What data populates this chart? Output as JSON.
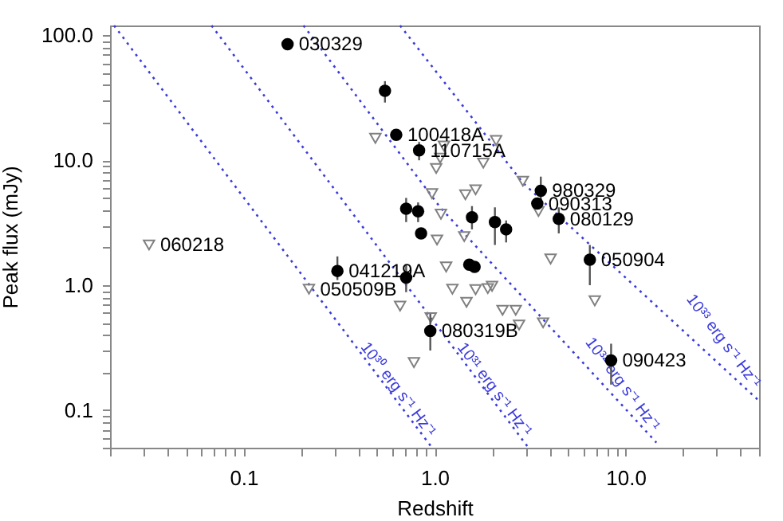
{
  "chart_data": {
    "type": "scatter",
    "xlabel": "Redshift",
    "ylabel": "Peak flux (mJy)",
    "xlim": [
      0.02,
      50
    ],
    "ylim": [
      0.05,
      120
    ],
    "log": "xy",
    "grid": false,
    "xticks": [
      {
        "value": 0.02,
        "label": null
      },
      {
        "value": 0.03,
        "label": null
      },
      {
        "value": 0.04,
        "label": null
      },
      {
        "value": 0.05,
        "label": null
      },
      {
        "value": 0.06,
        "label": null
      },
      {
        "value": 0.07,
        "label": null
      },
      {
        "value": 0.08,
        "label": null
      },
      {
        "value": 0.09,
        "label": null
      },
      {
        "value": 0.1,
        "label": "0.1"
      },
      {
        "value": 0.2,
        "label": null
      },
      {
        "value": 0.3,
        "label": null
      },
      {
        "value": 0.4,
        "label": null
      },
      {
        "value": 0.5,
        "label": null
      },
      {
        "value": 0.6,
        "label": null
      },
      {
        "value": 0.7,
        "label": null
      },
      {
        "value": 0.8,
        "label": null
      },
      {
        "value": 0.9,
        "label": null
      },
      {
        "value": 1,
        "label": "1.0"
      },
      {
        "value": 2,
        "label": null
      },
      {
        "value": 3,
        "label": null
      },
      {
        "value": 4,
        "label": null
      },
      {
        "value": 5,
        "label": null
      },
      {
        "value": 6,
        "label": null
      },
      {
        "value": 7,
        "label": null
      },
      {
        "value": 8,
        "label": null
      },
      {
        "value": 9,
        "label": null
      },
      {
        "value": 10,
        "label": "10.0"
      },
      {
        "value": 20,
        "label": null
      },
      {
        "value": 30,
        "label": null
      },
      {
        "value": 40,
        "label": null
      },
      {
        "value": 50,
        "label": null
      }
    ],
    "yticks": [
      {
        "value": 0.05,
        "label": null
      },
      {
        "value": 0.06,
        "label": null
      },
      {
        "value": 0.07,
        "label": null
      },
      {
        "value": 0.08,
        "label": null
      },
      {
        "value": 0.09,
        "label": null
      },
      {
        "value": 0.1,
        "label": "0.1"
      },
      {
        "value": 0.2,
        "label": null
      },
      {
        "value": 0.3,
        "label": null
      },
      {
        "value": 0.4,
        "label": null
      },
      {
        "value": 0.5,
        "label": null
      },
      {
        "value": 0.6,
        "label": null
      },
      {
        "value": 0.7,
        "label": null
      },
      {
        "value": 0.8,
        "label": null
      },
      {
        "value": 0.9,
        "label": null
      },
      {
        "value": 1,
        "label": "1.0"
      },
      {
        "value": 2,
        "label": null
      },
      {
        "value": 3,
        "label": null
      },
      {
        "value": 4,
        "label": null
      },
      {
        "value": 5,
        "label": null
      },
      {
        "value": 6,
        "label": null
      },
      {
        "value": 7,
        "label": null
      },
      {
        "value": 8,
        "label": null
      },
      {
        "value": 9,
        "label": null
      },
      {
        "value": 10,
        "label": "10.0"
      },
      {
        "value": 20,
        "label": null
      },
      {
        "value": 30,
        "label": null
      },
      {
        "value": 40,
        "label": null
      },
      {
        "value": 50,
        "label": null
      },
      {
        "value": 60,
        "label": null
      },
      {
        "value": 70,
        "label": null
      },
      {
        "value": 80,
        "label": null
      },
      {
        "value": 90,
        "label": null
      },
      {
        "value": 100,
        "label": "100.0"
      }
    ],
    "series": [
      {
        "name": "10³⁰ erg s⁻¹ Hz⁻¹",
        "type": "line",
        "line_style": "dotted",
        "marker": "none",
        "color": "#3b3bdc",
        "x": [
          0.021,
          0.97
        ],
        "values": [
          120,
          0.05
        ]
      },
      {
        "name": "10³¹ erg s⁻¹ Hz⁻¹",
        "type": "line",
        "line_style": "dotted",
        "marker": "none",
        "color": "#3b3bdc",
        "x": [
          0.068,
          3.1
        ],
        "values": [
          120,
          0.05
        ]
      },
      {
        "name": "10³² erg s⁻¹ Hz⁻¹",
        "type": "line",
        "line_style": "dotted",
        "marker": "none",
        "color": "#3b3bdc",
        "x": [
          0.206,
          1.07,
          14.5
        ],
        "values": [
          120,
          4.2,
          0.055
        ]
      },
      {
        "name": "10³³ erg s⁻¹ Hz⁻¹",
        "type": "line",
        "line_style": "dotted",
        "marker": "none",
        "color": "#3b3bdc",
        "x": [
          0.66,
          2.9,
          49
        ],
        "values": [
          120,
          6.6,
          0.122
        ]
      },
      {
        "marker": "triangle",
        "color": "#808080",
        "x": [
          0.032,
          0.22,
          0.49,
          1.12,
          2.1,
          1.07,
          1.02,
          1.8,
          2.9,
          0.97,
          1.45,
          1.64,
          1.08,
          3.5,
          1.03,
          1.43,
          4.05,
          1.15,
          1.24,
          1.64,
          1.9,
          2.0,
          1.47,
          0.66,
          6.9,
          0.955,
          2.27,
          2.66,
          2.77,
          3.7,
          0.78
        ],
        "values": [
          2.1,
          0.93,
          15,
          13,
          14.4,
          10.4,
          8.6,
          9.5,
          6.8,
          5.4,
          5.3,
          5.8,
          3.7,
          3.9,
          2.3,
          2.45,
          1.62,
          1.4,
          0.93,
          0.92,
          0.94,
          0.98,
          0.73,
          0.68,
          0.75,
          0.55,
          0.63,
          0.63,
          0.48,
          0.5,
          0.24
        ]
      },
      {
        "marker": "circle",
        "color": "#000000",
        "x": [
          0.17,
          0.55,
          0.63,
          0.83,
          3.6,
          3.45,
          4.47,
          0.71,
          0.82,
          0.85,
          1.57,
          2.07,
          2.37,
          6.5,
          0.31,
          0.71,
          1.52,
          1.62,
          0.95,
          8.4
        ],
        "values": [
          85,
          36,
          16,
          12,
          5.7,
          4.5,
          3.4,
          4.1,
          3.9,
          2.6,
          3.5,
          3.2,
          2.8,
          1.6,
          1.3,
          1.15,
          1.46,
          1.4,
          0.43,
          0.25
        ],
        "errors": [
          null,
          [
            29,
            43
          ],
          null,
          [
            10,
            14
          ],
          [
            4.4,
            7.4
          ],
          null,
          [
            2.6,
            4.2
          ],
          [
            3.2,
            5
          ],
          [
            3.2,
            4.6
          ],
          null,
          [
            2.8,
            4.3
          ],
          [
            2.1,
            4.2
          ],
          [
            2.2,
            3.3
          ],
          [
            1.0,
            2.1
          ],
          [
            1.1,
            1.7
          ],
          [
            0.88,
            1.45
          ],
          null,
          null,
          [
            0.3,
            0.59
          ],
          [
            0.16,
            0.34
          ]
        ]
      }
    ],
    "annotations": [
      {
        "text": "030329",
        "x": 0.17,
        "y": 85
      },
      {
        "text": "100418A",
        "x": 0.63,
        "y": 16
      },
      {
        "text": "110715A",
        "x": 0.83,
        "y": 12
      },
      {
        "text": "980329",
        "x": 3.6,
        "y": 5.7
      },
      {
        "text": "090313",
        "x": 3.45,
        "y": 4.5
      },
      {
        "text": "080129",
        "x": 4.47,
        "y": 3.4
      },
      {
        "text": "050904",
        "x": 6.5,
        "y": 1.6
      },
      {
        "text": "041219A",
        "x": 0.31,
        "y": 1.3
      },
      {
        "text": "050509B",
        "x": 0.22,
        "y": 0.93
      },
      {
        "text": "060218",
        "x": 0.032,
        "y": 2.1
      },
      {
        "text": "080319B",
        "x": 0.95,
        "y": 0.43
      },
      {
        "text": "090423",
        "x": 8.4,
        "y": 0.25
      }
    ]
  }
}
